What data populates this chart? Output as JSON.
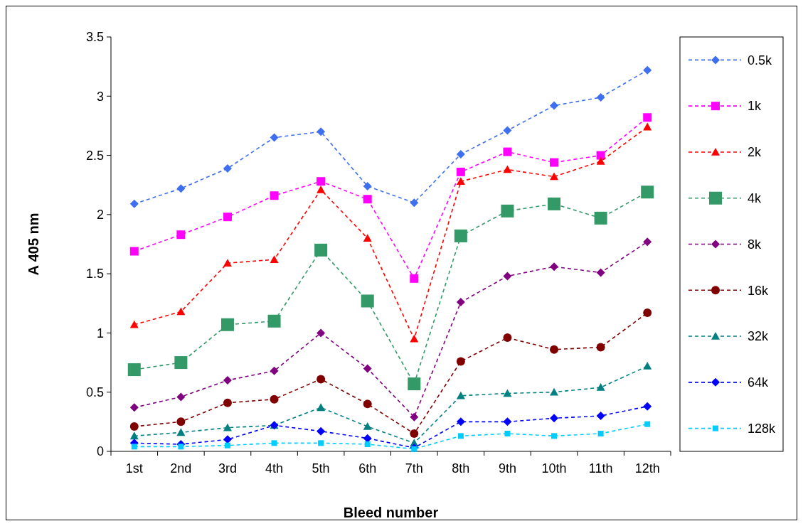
{
  "chart_data": {
    "type": "line",
    "xlabel": "Bleed number",
    "ylabel": "A 405 nm",
    "categories": [
      "1st",
      "2nd",
      "3rd",
      "4th",
      "5th",
      "6th",
      "7th",
      "8th",
      "9th",
      "10th",
      "11th",
      "12th"
    ],
    "ylim": [
      0,
      3.5
    ],
    "yticks": [
      0,
      0.5,
      1,
      1.5,
      2,
      2.5,
      3,
      3.5
    ],
    "grid": false,
    "legend": "right",
    "line_style": "dashed",
    "series": [
      {
        "name": "0.5k",
        "color": "#3d6ff0",
        "marker": "diamond",
        "values": [
          2.09,
          2.22,
          2.39,
          2.65,
          2.7,
          2.24,
          2.1,
          2.51,
          2.71,
          2.92,
          2.99,
          3.22
        ]
      },
      {
        "name": "1k",
        "color": "#ff00ff",
        "marker": "square",
        "values": [
          1.69,
          1.83,
          1.98,
          2.16,
          2.28,
          2.13,
          1.46,
          2.36,
          2.53,
          2.44,
          2.5,
          2.82
        ]
      },
      {
        "name": "2k",
        "color": "#ff0000",
        "marker": "triangle",
        "values": [
          1.07,
          1.18,
          1.59,
          1.62,
          2.21,
          1.8,
          0.95,
          2.28,
          2.38,
          2.32,
          2.45,
          2.74
        ]
      },
      {
        "name": "4k",
        "color": "#339966",
        "marker": "square",
        "values": [
          0.69,
          0.75,
          1.07,
          1.1,
          1.7,
          1.27,
          0.57,
          1.82,
          2.03,
          2.09,
          1.97,
          2.19
        ]
      },
      {
        "name": "8k",
        "color": "#800080",
        "marker": "diamond",
        "values": [
          0.37,
          0.46,
          0.6,
          0.68,
          1.0,
          0.7,
          0.29,
          1.26,
          1.48,
          1.56,
          1.51,
          1.77
        ]
      },
      {
        "name": "16k",
        "color": "#800000",
        "marker": "circle",
        "values": [
          0.21,
          0.25,
          0.41,
          0.44,
          0.61,
          0.4,
          0.15,
          0.76,
          0.96,
          0.86,
          0.88,
          1.17
        ]
      },
      {
        "name": "32k",
        "color": "#008080",
        "marker": "triangle",
        "values": [
          0.13,
          0.16,
          0.2,
          0.22,
          0.37,
          0.21,
          0.07,
          0.47,
          0.49,
          0.5,
          0.54,
          0.72
        ]
      },
      {
        "name": "64k",
        "color": "#0000ff",
        "marker": "diamond",
        "values": [
          0.07,
          0.06,
          0.1,
          0.22,
          0.17,
          0.11,
          0.03,
          0.25,
          0.25,
          0.28,
          0.3,
          0.38
        ]
      },
      {
        "name": "128k",
        "color": "#00ccff",
        "marker": "square",
        "values": [
          0.04,
          0.04,
          0.05,
          0.07,
          0.07,
          0.06,
          0.02,
          0.13,
          0.15,
          0.13,
          0.15,
          0.23
        ]
      }
    ]
  }
}
